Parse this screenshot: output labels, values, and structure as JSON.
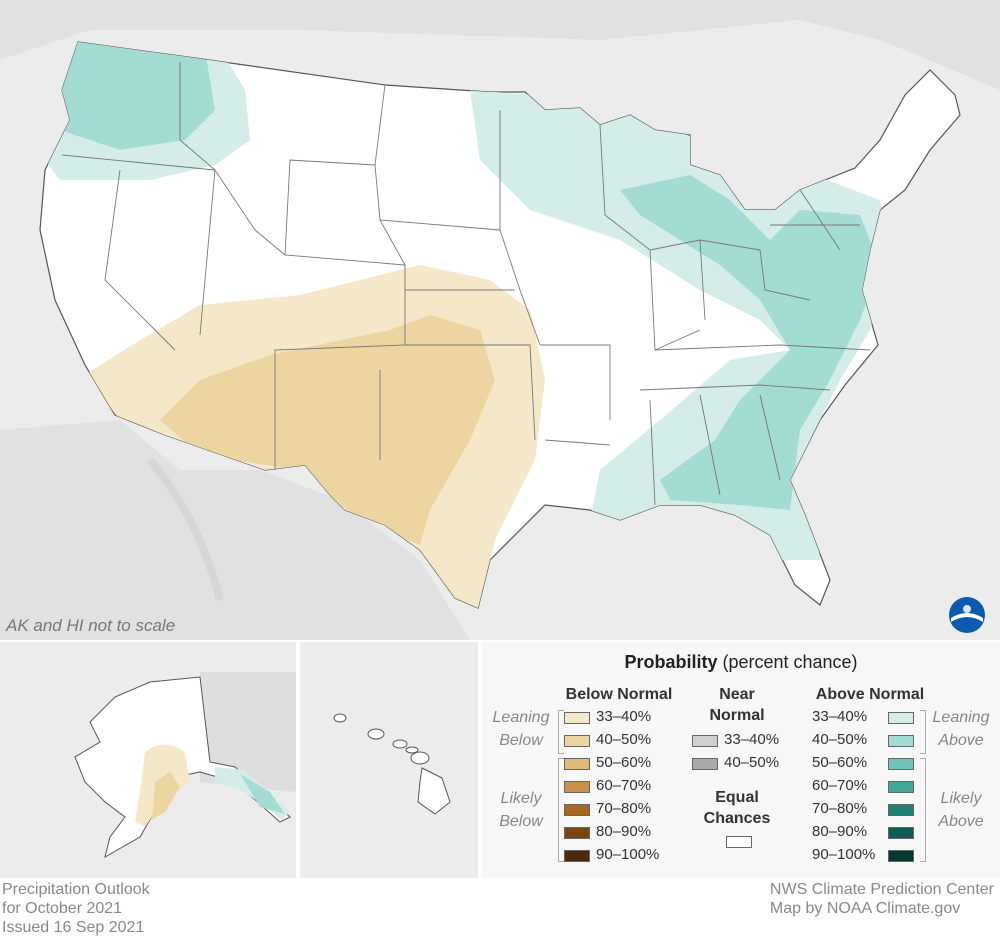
{
  "map_note": "AK and HI not to scale",
  "legend": {
    "title_bold": "Probability",
    "title_rest": " (percent chance)",
    "below_normal": {
      "heading": "Below Normal",
      "leaning_label": [
        "Leaning",
        "Below"
      ],
      "likely_label": [
        "Likely",
        "Below"
      ],
      "items": [
        {
          "label": "33–40%",
          "color": "#f5e8c8"
        },
        {
          "label": "40–50%",
          "color": "#ecd5a0"
        },
        {
          "label": "50–60%",
          "color": "#dfb978"
        },
        {
          "label": "60–70%",
          "color": "#c99144"
        },
        {
          "label": "70–80%",
          "color": "#a7681f"
        },
        {
          "label": "80–90%",
          "color": "#7a4512"
        },
        {
          "label": "90–100%",
          "color": "#4a2a0a"
        }
      ]
    },
    "near_normal": {
      "heading": [
        "Near",
        "Normal"
      ],
      "items": [
        {
          "label": "33–40%",
          "color": "#cfcfcf"
        },
        {
          "label": "40–50%",
          "color": "#a9a9a9"
        }
      ]
    },
    "equal_chances": {
      "heading": [
        "Equal",
        "Chances"
      ],
      "color": "#ffffff"
    },
    "above_normal": {
      "heading": "Above Normal",
      "leaning_label": [
        "Leaning",
        "Above"
      ],
      "likely_label": [
        "Likely",
        "Above"
      ],
      "items": [
        {
          "label": "33–40%",
          "color": "#d4ede9"
        },
        {
          "label": "40–50%",
          "color": "#a3dcd3"
        },
        {
          "label": "50–60%",
          "color": "#6cc5b8"
        },
        {
          "label": "60–70%",
          "color": "#3fa899"
        },
        {
          "label": "70–80%",
          "color": "#1d8274"
        },
        {
          "label": "80–90%",
          "color": "#0d5e52"
        },
        {
          "label": "90–100%",
          "color": "#053a33"
        }
      ]
    }
  },
  "footer": {
    "left": [
      "Precipitation Outlook",
      "for October 2021",
      "Issued 16 Sep 2021"
    ],
    "right": [
      "NWS Climate Prediction Center",
      "Map by NOAA Climate.gov"
    ]
  },
  "colors": {
    "background_land": "#ececec",
    "equal_chances": "#ffffff",
    "below_leaning": "#f5e8c8",
    "below_40": "#ecd5a0",
    "above_leaning": "#d4ede9",
    "above_40": "#a3dcd3",
    "state_border": "#777777"
  },
  "icons": {
    "logo": "noaa-logo-icon"
  }
}
